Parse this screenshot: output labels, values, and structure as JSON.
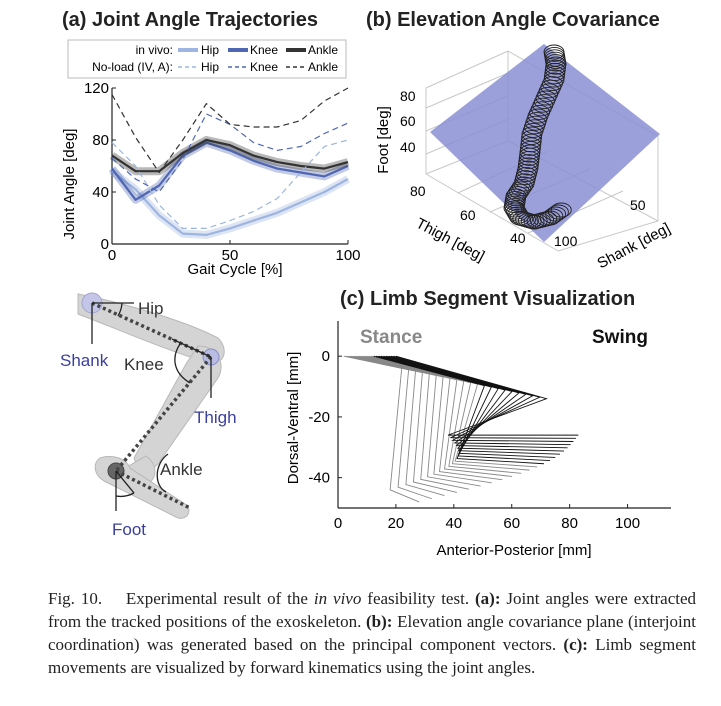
{
  "panel_a": {
    "title": "(a) Joint Angle Trajectories",
    "legend": {
      "row1_label": "in vivo:",
      "row2_label": "No-load (IV, A):",
      "entries": [
        "Hip",
        "Knee",
        "Ankle"
      ]
    },
    "colors": {
      "hip": "#9db5e0",
      "knee": "#4f66b3",
      "ankle": "#333333"
    }
  },
  "panel_b": {
    "title": "(b) Elevation Angle Covariance",
    "foot_ticks": [
      "80",
      "60",
      "40"
    ],
    "thigh_ticks": [
      "80",
      "60",
      "40"
    ],
    "shank_ticks": [
      "50",
      "100"
    ],
    "plane_color": "#8a8fd4"
  },
  "panel_c": {
    "title": "(c) Limb Segment Visualization",
    "stance_label": "Stance",
    "swing_label": "Swing",
    "stance_color": "#888888",
    "swing_color": "#111111"
  },
  "diagram": {
    "hip": "Hip",
    "shank": "Shank",
    "knee": "Knee",
    "thigh": "Thigh",
    "ankle": "Ankle",
    "foot": "Foot"
  },
  "chart_data": [
    {
      "type": "line",
      "title": "(a) Joint Angle Trajectories",
      "xlabel": "Gait Cycle [%]",
      "ylabel": "Joint Angle [deg]",
      "xlim": [
        0,
        100
      ],
      "ylim": [
        0,
        120
      ],
      "x_ticks": [
        0,
        50,
        100
      ],
      "y_ticks": [
        0,
        40,
        80,
        120
      ],
      "grid": false,
      "legend_position": "top",
      "x": [
        0,
        10,
        20,
        30,
        40,
        50,
        60,
        70,
        80,
        90,
        100
      ],
      "series": [
        {
          "name": "Hip",
          "group": "in vivo:",
          "style": "solid",
          "values": [
            56,
            42,
            22,
            8,
            7,
            12,
            18,
            24,
            32,
            40,
            50
          ]
        },
        {
          "name": "Knee",
          "group": "in vivo:",
          "style": "solid",
          "values": [
            58,
            34,
            45,
            68,
            78,
            72,
            64,
            58,
            55,
            52,
            60
          ]
        },
        {
          "name": "Ankle",
          "group": "in vivo:",
          "style": "solid",
          "values": [
            68,
            56,
            56,
            70,
            80,
            76,
            68,
            63,
            60,
            58,
            63
          ]
        },
        {
          "name": "Hip",
          "group": "No-load (IV, A):",
          "style": "dashed",
          "values": [
            78,
            60,
            30,
            12,
            12,
            18,
            25,
            35,
            55,
            75,
            80
          ]
        },
        {
          "name": "Knee",
          "group": "No-load (IV, A):",
          "style": "dashed",
          "values": [
            66,
            50,
            40,
            65,
            100,
            92,
            78,
            72,
            75,
            85,
            93
          ]
        },
        {
          "name": "Ankle",
          "group": "No-load (IV, A):",
          "style": "dashed",
          "values": [
            115,
            82,
            55,
            80,
            108,
            92,
            90,
            90,
            95,
            110,
            120
          ]
        }
      ]
    },
    {
      "type": "scatter",
      "title": "(b) Elevation Angle Covariance",
      "xlabel": "Thigh [deg]",
      "ylabel": "Shank [deg]",
      "zlabel": "Foot [deg]",
      "x_ticks": [
        40,
        60,
        80
      ],
      "y_ticks": [
        50,
        100
      ],
      "z_ticks": [
        40,
        60,
        80
      ],
      "grid": true
    },
    {
      "type": "line",
      "title": "(c) Limb Segment Visualization",
      "xlabel": "Anterior-Posterior [mm]",
      "ylabel": "Dorsal-Ventral [mm]",
      "xlim": [
        0,
        115
      ],
      "ylim": [
        -50,
        5
      ],
      "x_ticks": [
        0,
        20,
        40,
        60,
        80,
        100
      ],
      "y_ticks": [
        0,
        -20,
        -40
      ],
      "grid": false
    }
  ],
  "caption": {
    "fig": "Fig. 10.",
    "t1": "Experimental result of the ",
    "t1_em": "in vivo",
    "t2": " feasibility test. ",
    "a": "(a):",
    "t3": " Joint angles were extracted from the tracked positions of the exoskeleton. ",
    "b": "(b):",
    "t4": " Elevation angle covariance plane (interjoint coordination) was generated based on the principal component vectors. ",
    "c": "(c):",
    "t5": " Limb segment movements are visualized by forward kinematics using the joint angles."
  }
}
